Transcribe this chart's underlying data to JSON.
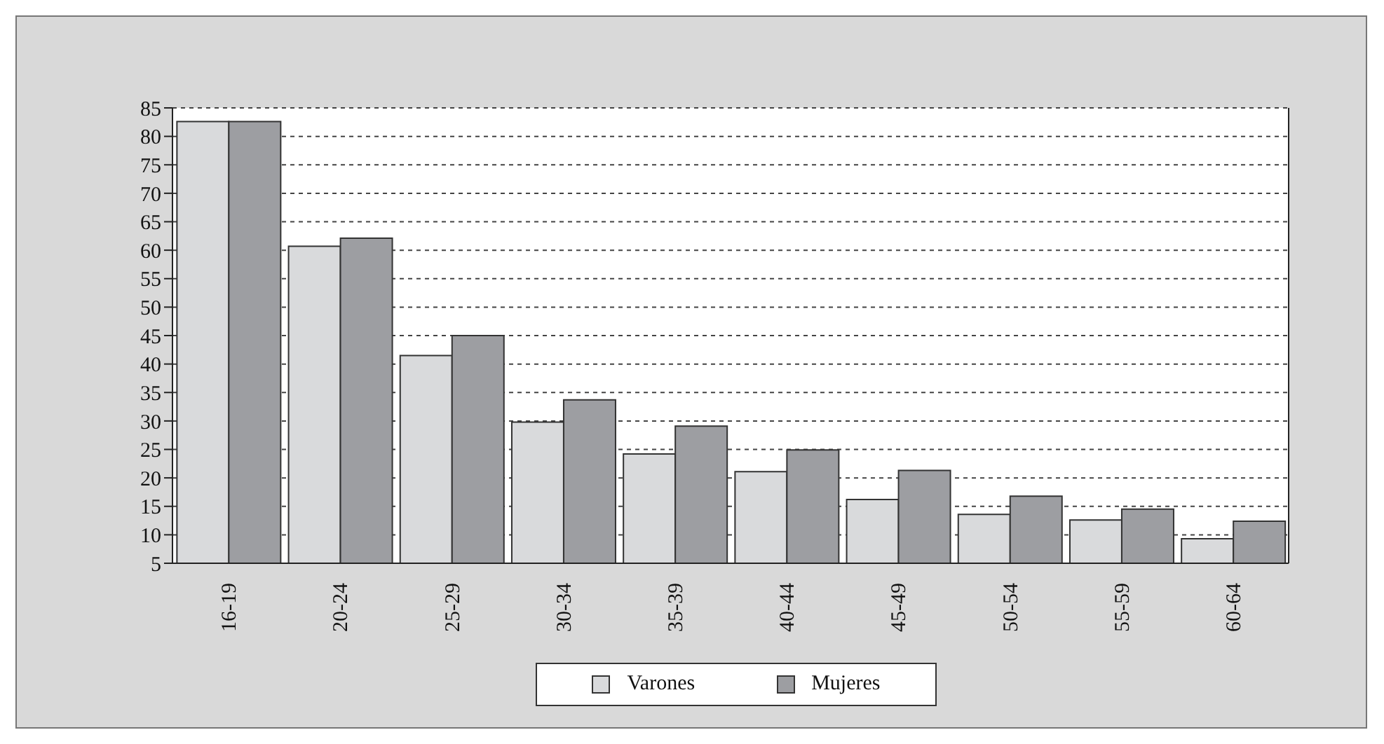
{
  "chart_data": {
    "type": "bar",
    "categories": [
      "16-19",
      "20-24",
      "25-29",
      "30-34",
      "35-39",
      "40-44",
      "45-49",
      "50-54",
      "55-59",
      "60-64"
    ],
    "series": [
      {
        "name": "Varones",
        "color": "#d9dadc",
        "values": [
          82.6,
          60.7,
          41.5,
          29.8,
          24.2,
          21.1,
          16.2,
          13.6,
          12.6,
          9.3
        ]
      },
      {
        "name": "Mujeres",
        "color": "#9d9ea2",
        "values": [
          82.6,
          62.1,
          45.0,
          33.7,
          29.1,
          24.9,
          21.3,
          16.8,
          14.5,
          12.4
        ]
      }
    ],
    "ylim": [
      5,
      85
    ],
    "yticks": [
      5,
      10,
      15,
      20,
      25,
      30,
      35,
      40,
      45,
      50,
      55,
      60,
      65,
      70,
      75,
      80,
      85
    ],
    "grid": "y",
    "legend": "bottom"
  }
}
